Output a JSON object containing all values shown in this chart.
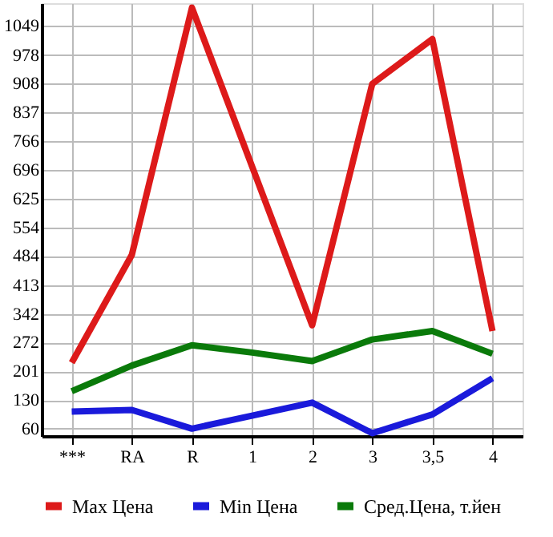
{
  "chart_data": {
    "type": "line",
    "categories": [
      "***",
      "RA",
      "R",
      "1",
      "2",
      "3",
      "3,5",
      "4"
    ],
    "series": [
      {
        "name": "Max Цена",
        "color": "#dd1a1a",
        "values": [
          222,
          487,
          1094,
          704,
          314,
          907,
          1017,
          300
        ]
      },
      {
        "name": "Min Цена",
        "color": "#1a1adb",
        "values": [
          102,
          106,
          60,
          92,
          124,
          49,
          95,
          184
        ]
      },
      {
        "name": "Сред.Цена, т.йен",
        "color": "#0a7a0a",
        "values": [
          152,
          215,
          265,
          247,
          226,
          279,
          300,
          244
        ]
      }
    ],
    "ylim": [
      42,
      1105
    ],
    "yticks": [
      60,
      130,
      201,
      272,
      342,
      413,
      484,
      554,
      625,
      696,
      766,
      837,
      908,
      978,
      1049
    ],
    "grid": true,
    "legend": "bottom",
    "marker": "none",
    "line_style": "solid"
  }
}
